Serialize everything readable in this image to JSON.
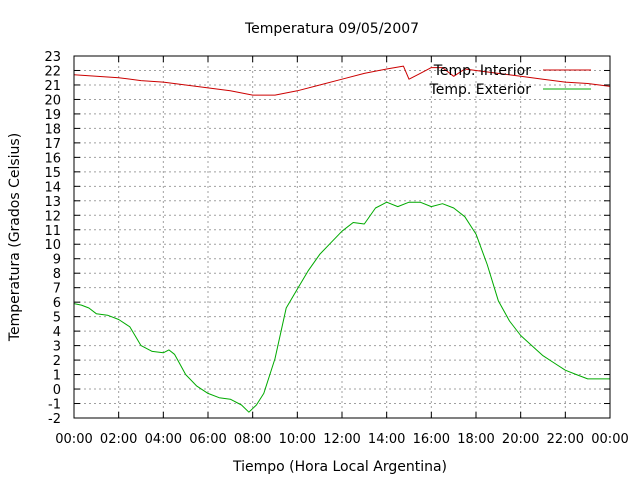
{
  "chart_data": {
    "type": "line",
    "title": "Temperatura 09/05/2007",
    "xlabel": "Tiempo (Hora Local Argentina)",
    "ylabel": "Temperatura (Grados Celsius)",
    "xlim": [
      "00:00",
      "24:00"
    ],
    "ylim": [
      -2,
      23
    ],
    "x_ticks": [
      "00:00",
      "02:00",
      "04:00",
      "06:00",
      "08:00",
      "10:00",
      "12:00",
      "14:00",
      "16:00",
      "18:00",
      "20:00",
      "22:00",
      "00:00"
    ],
    "y_ticks": [
      -2,
      -1,
      0,
      1,
      2,
      3,
      4,
      5,
      6,
      7,
      8,
      9,
      10,
      11,
      12,
      13,
      14,
      15,
      16,
      17,
      18,
      19,
      20,
      21,
      22,
      23
    ],
    "grid": true,
    "legend_position": "top-right",
    "series": [
      {
        "name": "Temp. Interior",
        "color": "#cc0000",
        "x": [
          "00:00",
          "01:00",
          "02:00",
          "03:00",
          "04:00",
          "05:00",
          "06:00",
          "07:00",
          "08:00",
          "09:00",
          "10:00",
          "11:00",
          "12:00",
          "13:00",
          "14:00",
          "14:45",
          "15:00",
          "15:30",
          "16:00",
          "16:30",
          "17:00",
          "17:30",
          "18:00",
          "19:00",
          "20:00",
          "21:00",
          "22:00",
          "23:00",
          "24:00"
        ],
        "values": [
          21.7,
          21.6,
          21.5,
          21.3,
          21.2,
          21.0,
          20.8,
          20.6,
          20.3,
          20.3,
          20.6,
          21.0,
          21.4,
          21.8,
          22.1,
          22.3,
          21.4,
          21.8,
          22.2,
          22.2,
          21.6,
          22.1,
          22.0,
          21.8,
          21.6,
          21.4,
          21.2,
          21.1,
          20.9
        ]
      },
      {
        "name": "Temp. Exterior",
        "color": "#00aa00",
        "x": [
          "00:00",
          "00:20",
          "00:40",
          "01:00",
          "01:30",
          "02:00",
          "02:30",
          "03:00",
          "03:30",
          "04:00",
          "04:15",
          "04:30",
          "04:45",
          "05:00",
          "05:30",
          "06:00",
          "06:30",
          "07:00",
          "07:30",
          "07:50",
          "08:10",
          "08:30",
          "09:00",
          "09:30",
          "10:00",
          "10:30",
          "11:00",
          "11:30",
          "12:00",
          "12:30",
          "13:00",
          "13:30",
          "14:00",
          "14:30",
          "15:00",
          "15:30",
          "16:00",
          "16:30",
          "17:00",
          "17:30",
          "18:00",
          "18:30",
          "19:00",
          "19:30",
          "20:00",
          "20:30",
          "21:00",
          "21:30",
          "22:00",
          "22:30",
          "23:00",
          "24:00"
        ],
        "values": [
          5.9,
          5.8,
          5.6,
          5.2,
          5.1,
          4.8,
          4.3,
          3.0,
          2.6,
          2.5,
          2.7,
          2.4,
          1.7,
          1.0,
          0.2,
          -0.3,
          -0.6,
          -0.7,
          -1.1,
          -1.6,
          -1.1,
          -0.3,
          2.1,
          5.6,
          6.9,
          8.2,
          9.3,
          10.1,
          10.9,
          11.5,
          11.4,
          12.5,
          12.9,
          12.6,
          12.9,
          12.9,
          12.6,
          12.8,
          12.5,
          11.9,
          10.7,
          8.6,
          6.1,
          4.7,
          3.7,
          3.0,
          2.3,
          1.8,
          1.3,
          1.0,
          0.7,
          0.7
        ]
      }
    ]
  }
}
